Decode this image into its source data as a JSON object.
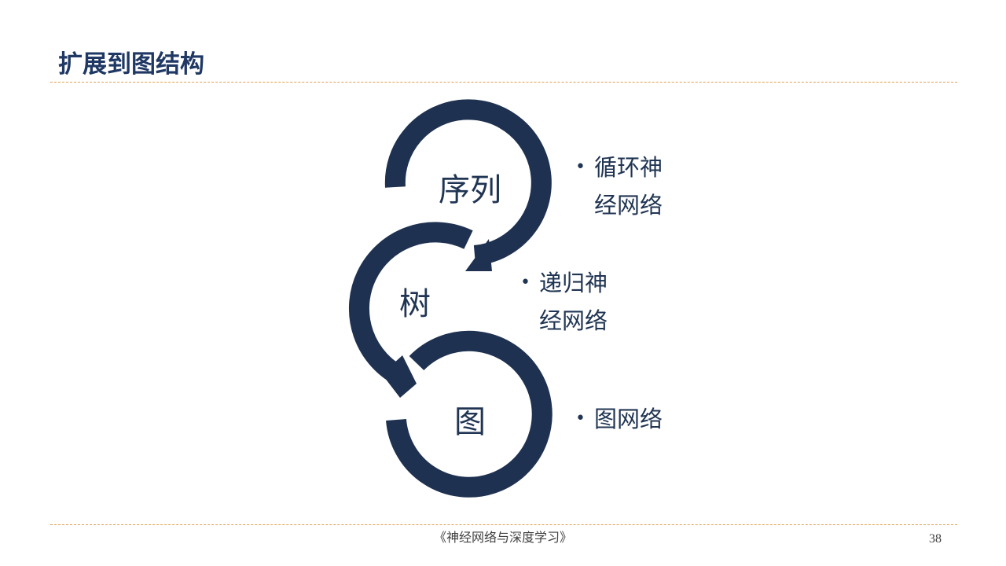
{
  "slide": {
    "title": "扩展到图结构",
    "page_number": "38",
    "footer": "《神经网络与深度学习》"
  },
  "diagram": {
    "nodes": [
      {
        "label": "序列"
      },
      {
        "label": "树"
      },
      {
        "label": "图"
      }
    ],
    "bullets": [
      {
        "lines": [
          "循环神",
          "经网络"
        ]
      },
      {
        "lines": [
          "递归神",
          "经网络"
        ]
      },
      {
        "lines": [
          "图网络"
        ]
      }
    ]
  },
  "colors": {
    "ring": "#1e3150",
    "text": "#203553",
    "title": "#1f3864",
    "rule": "#e0a050"
  }
}
